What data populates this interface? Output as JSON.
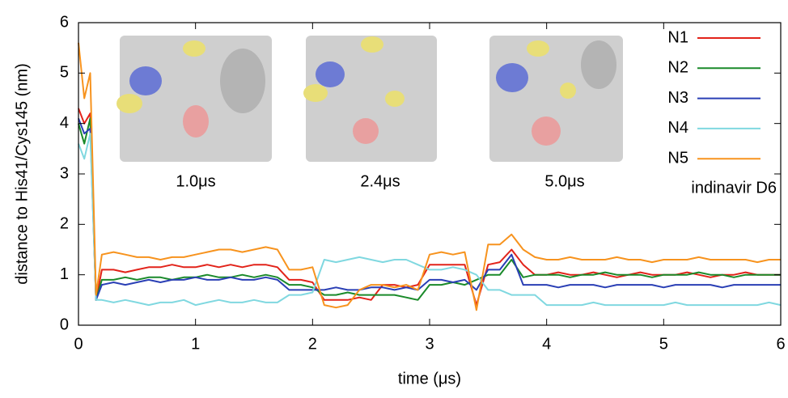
{
  "chart_data": {
    "type": "line",
    "xlabel": "time (μs)",
    "ylabel": "distance to His41/Cys145 (nm)",
    "legend_title": "indinavir D6",
    "legend_position": "upper right",
    "annotations": [
      "1.0μs",
      "2.4μs",
      "5.0μs"
    ],
    "xlim": [
      0,
      6
    ],
    "xticks": [
      0,
      1,
      2,
      3,
      4,
      5,
      6
    ],
    "ylim": [
      0,
      6
    ],
    "yticks": [
      0,
      1,
      2,
      3,
      4,
      5,
      6
    ],
    "x": [
      0,
      0.05,
      0.1,
      0.15,
      0.2,
      0.3,
      0.4,
      0.5,
      0.6,
      0.7,
      0.8,
      0.9,
      1.0,
      1.1,
      1.2,
      1.3,
      1.4,
      1.5,
      1.6,
      1.7,
      1.8,
      1.9,
      2.0,
      2.1,
      2.2,
      2.3,
      2.4,
      2.5,
      2.6,
      2.7,
      2.8,
      2.9,
      3.0,
      3.1,
      3.2,
      3.3,
      3.4,
      3.5,
      3.6,
      3.7,
      3.8,
      3.9,
      4.0,
      4.1,
      4.2,
      4.3,
      4.4,
      4.5,
      4.6,
      4.7,
      4.8,
      4.9,
      5.0,
      5.1,
      5.2,
      5.3,
      5.4,
      5.5,
      5.6,
      5.7,
      5.8,
      5.9,
      6.0
    ],
    "series": [
      {
        "name": "N1",
        "color": "#e2231a",
        "values": [
          4.3,
          4.0,
          4.2,
          0.5,
          1.1,
          1.1,
          1.05,
          1.1,
          1.15,
          1.15,
          1.2,
          1.15,
          1.15,
          1.2,
          1.15,
          1.2,
          1.15,
          1.2,
          1.2,
          1.15,
          0.9,
          0.9,
          0.85,
          0.5,
          0.5,
          0.5,
          0.55,
          0.5,
          0.8,
          0.8,
          0.75,
          0.8,
          1.2,
          1.2,
          1.2,
          1.2,
          0.4,
          1.2,
          1.25,
          1.5,
          1.2,
          1.0,
          1.0,
          1.05,
          1.0,
          1.0,
          1.05,
          1.0,
          0.95,
          1.0,
          1.05,
          1.0,
          1.0,
          1.0,
          1.05,
          1.0,
          0.95,
          1.0,
          1.0,
          1.05,
          1.0,
          1.0,
          1.0
        ]
      },
      {
        "name": "N2",
        "color": "#1a8a2a",
        "values": [
          4.0,
          3.6,
          4.1,
          0.5,
          0.9,
          0.9,
          0.95,
          0.9,
          0.95,
          0.95,
          0.9,
          0.95,
          0.95,
          1.0,
          0.95,
          0.95,
          1.0,
          0.95,
          1.0,
          0.95,
          0.8,
          0.8,
          0.75,
          0.6,
          0.6,
          0.65,
          0.6,
          0.6,
          0.6,
          0.6,
          0.55,
          0.5,
          0.8,
          0.8,
          0.85,
          0.8,
          0.9,
          1.0,
          1.0,
          1.3,
          0.95,
          1.0,
          1.0,
          1.0,
          0.95,
          1.0,
          1.0,
          1.05,
          1.0,
          1.0,
          1.0,
          0.95,
          1.0,
          1.0,
          1.0,
          1.05,
          1.0,
          1.0,
          0.95,
          1.0,
          1.0,
          1.0,
          1.0
        ]
      },
      {
        "name": "N3",
        "color": "#2a3fb5",
        "values": [
          4.1,
          3.8,
          3.9,
          0.5,
          0.8,
          0.85,
          0.8,
          0.85,
          0.9,
          0.85,
          0.9,
          0.9,
          0.95,
          0.9,
          0.9,
          0.95,
          0.9,
          0.9,
          0.95,
          0.9,
          0.7,
          0.7,
          0.7,
          0.7,
          0.75,
          0.7,
          0.7,
          0.75,
          0.75,
          0.7,
          0.75,
          0.7,
          0.9,
          0.9,
          0.85,
          0.9,
          0.7,
          1.1,
          1.1,
          1.4,
          0.8,
          0.8,
          0.8,
          0.75,
          0.8,
          0.8,
          0.8,
          0.75,
          0.8,
          0.8,
          0.8,
          0.8,
          0.75,
          0.8,
          0.8,
          0.8,
          0.8,
          0.75,
          0.8,
          0.8,
          0.8,
          0.8,
          0.8
        ]
      },
      {
        "name": "N4",
        "color": "#80d8e0",
        "values": [
          3.6,
          3.3,
          3.8,
          0.5,
          0.5,
          0.45,
          0.5,
          0.45,
          0.4,
          0.45,
          0.45,
          0.5,
          0.4,
          0.45,
          0.5,
          0.45,
          0.45,
          0.5,
          0.45,
          0.45,
          0.6,
          0.6,
          0.65,
          1.3,
          1.25,
          1.3,
          1.35,
          1.3,
          1.25,
          1.3,
          1.3,
          1.2,
          1.1,
          1.1,
          1.15,
          1.1,
          1.0,
          0.7,
          0.7,
          0.6,
          0.6,
          0.6,
          0.4,
          0.4,
          0.4,
          0.4,
          0.45,
          0.4,
          0.4,
          0.4,
          0.4,
          0.4,
          0.4,
          0.45,
          0.4,
          0.4,
          0.4,
          0.4,
          0.4,
          0.4,
          0.4,
          0.45,
          0.4
        ]
      },
      {
        "name": "N5",
        "color": "#f7931e",
        "values": [
          5.6,
          4.5,
          5.0,
          0.6,
          1.4,
          1.45,
          1.4,
          1.35,
          1.35,
          1.3,
          1.35,
          1.35,
          1.4,
          1.45,
          1.5,
          1.5,
          1.45,
          1.5,
          1.55,
          1.5,
          1.1,
          1.1,
          1.15,
          0.4,
          0.35,
          0.4,
          0.7,
          0.8,
          0.8,
          0.75,
          0.8,
          0.7,
          1.4,
          1.45,
          1.4,
          1.45,
          0.3,
          1.6,
          1.6,
          1.8,
          1.5,
          1.35,
          1.3,
          1.3,
          1.35,
          1.3,
          1.3,
          1.3,
          1.35,
          1.3,
          1.3,
          1.25,
          1.3,
          1.3,
          1.3,
          1.35,
          1.3,
          1.3,
          1.3,
          1.3,
          1.25,
          1.3,
          1.3
        ]
      }
    ]
  }
}
